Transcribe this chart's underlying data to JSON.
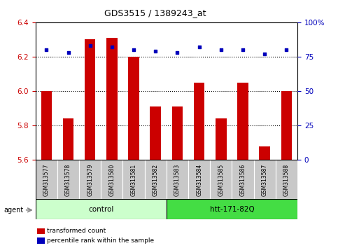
{
  "title": "GDS3515 / 1389243_at",
  "samples": [
    "GSM313577",
    "GSM313578",
    "GSM313579",
    "GSM313580",
    "GSM313581",
    "GSM313582",
    "GSM313583",
    "GSM313584",
    "GSM313585",
    "GSM313586",
    "GSM313587",
    "GSM313588"
  ],
  "transformed_counts": [
    6.0,
    5.84,
    6.3,
    6.31,
    6.2,
    5.91,
    5.91,
    6.05,
    5.84,
    6.05,
    5.68,
    6.0
  ],
  "percentile_ranks": [
    80,
    78,
    83,
    82,
    80,
    79,
    78,
    82,
    80,
    80,
    77,
    80
  ],
  "ymin": 5.6,
  "ymax": 6.4,
  "yticks": [
    5.6,
    5.8,
    6.0,
    6.2,
    6.4
  ],
  "right_yticks": [
    0,
    25,
    50,
    75,
    100
  ],
  "right_yticklabels": [
    "0",
    "25",
    "50",
    "75",
    "100%"
  ],
  "bar_color": "#cc0000",
  "dot_color": "#0000bb",
  "bar_width": 0.5,
  "groups": [
    {
      "label": "control",
      "start": 0,
      "end": 5,
      "color": "#ccffcc"
    },
    {
      "label": "htt-171-82Q",
      "start": 6,
      "end": 11,
      "color": "#44dd44"
    }
  ],
  "agent_label": "agent",
  "legend_items": [
    {
      "label": "transformed count",
      "color": "#cc0000"
    },
    {
      "label": "percentile rank within the sample",
      "color": "#0000bb"
    }
  ],
  "tick_label_color_left": "#cc0000",
  "tick_label_color_right": "#0000bb",
  "bar_bottom": 5.6,
  "percentile_scale_min": 0,
  "percentile_scale_max": 100
}
